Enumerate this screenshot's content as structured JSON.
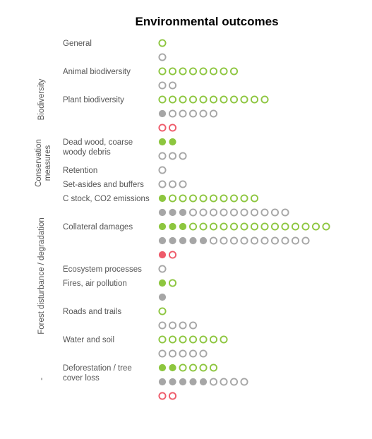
{
  "chart_data": {
    "type": "dot-matrix",
    "title": "Environmental outcomes",
    "colors": {
      "green": "#8dc63f",
      "grey": "#a6a6a6",
      "red": "#ee5b6a"
    },
    "legend": "none",
    "groups": [
      {
        "name": "",
        "rows": [
          0
        ]
      },
      {
        "name": "Biodiversity",
        "rows": [
          1,
          2
        ]
      },
      {
        "name": "Conservation measures",
        "rows": [
          3,
          4,
          5
        ]
      },
      {
        "name": "Forest disturbance / degradation",
        "rows": [
          6,
          7,
          8,
          9,
          10,
          11
        ]
      },
      {
        "name": "-",
        "rows": [
          12
        ]
      }
    ],
    "rows": [
      {
        "label": "General",
        "label2": "",
        "series": [
          {
            "color": "green",
            "filled": 0,
            "open": 1
          },
          {
            "color": "grey",
            "filled": 0,
            "open": 1
          }
        ]
      },
      {
        "label": "Animal biodiversity",
        "label2": "",
        "series": [
          {
            "color": "green",
            "filled": 0,
            "open": 8
          },
          {
            "color": "grey",
            "filled": 0,
            "open": 2
          }
        ]
      },
      {
        "label": "Plant biodiversity",
        "label2": "",
        "series": [
          {
            "color": "green",
            "filled": 0,
            "open": 11
          },
          {
            "color": "grey",
            "filled": 1,
            "open": 5
          },
          {
            "color": "red",
            "filled": 0,
            "open": 2
          }
        ]
      },
      {
        "label": "Dead wood, coarse",
        "label2": "woody debris",
        "series": [
          {
            "color": "green",
            "filled": 2,
            "open": 0
          },
          {
            "color": "grey",
            "filled": 0,
            "open": 3
          }
        ]
      },
      {
        "label": "Retention",
        "label2": "",
        "series": [
          {
            "color": "grey",
            "filled": 0,
            "open": 1
          }
        ]
      },
      {
        "label": "Set-asides and buffers",
        "label2": "",
        "series": [
          {
            "color": "grey",
            "filled": 0,
            "open": 3
          }
        ]
      },
      {
        "label": "C stock, CO2 emissions",
        "label2": "",
        "series": [
          {
            "color": "green",
            "filled": 1,
            "open": 9
          },
          {
            "color": "grey",
            "filled": 3,
            "open": 10
          }
        ]
      },
      {
        "label": "Collateral damages",
        "label2": "",
        "series": [
          {
            "color": "green",
            "filled": 3,
            "open": 14
          },
          {
            "color": "grey",
            "filled": 5,
            "open": 10
          },
          {
            "color": "red",
            "filled": 1,
            "open": 1
          }
        ]
      },
      {
        "label": "Ecosystem processes",
        "label2": "",
        "series": [
          {
            "color": "grey",
            "filled": 0,
            "open": 1
          }
        ]
      },
      {
        "label": "Fires, air pollution",
        "label2": "",
        "series": [
          {
            "color": "green",
            "filled": 1,
            "open": 1
          },
          {
            "color": "grey",
            "filled": 1,
            "open": 0
          }
        ]
      },
      {
        "label": "Roads and trails",
        "label2": "",
        "series": [
          {
            "color": "green",
            "filled": 0,
            "open": 1
          },
          {
            "color": "grey",
            "filled": 0,
            "open": 4
          }
        ]
      },
      {
        "label": "Water and soil",
        "label2": "",
        "series": [
          {
            "color": "green",
            "filled": 0,
            "open": 7
          },
          {
            "color": "grey",
            "filled": 0,
            "open": 5
          }
        ]
      },
      {
        "label": "Deforestation / tree",
        "label2": "cover loss",
        "series": [
          {
            "color": "green",
            "filled": 2,
            "open": 4
          },
          {
            "color": "grey",
            "filled": 5,
            "open": 4
          },
          {
            "color": "red",
            "filled": 0,
            "open": 2
          }
        ]
      }
    ]
  }
}
